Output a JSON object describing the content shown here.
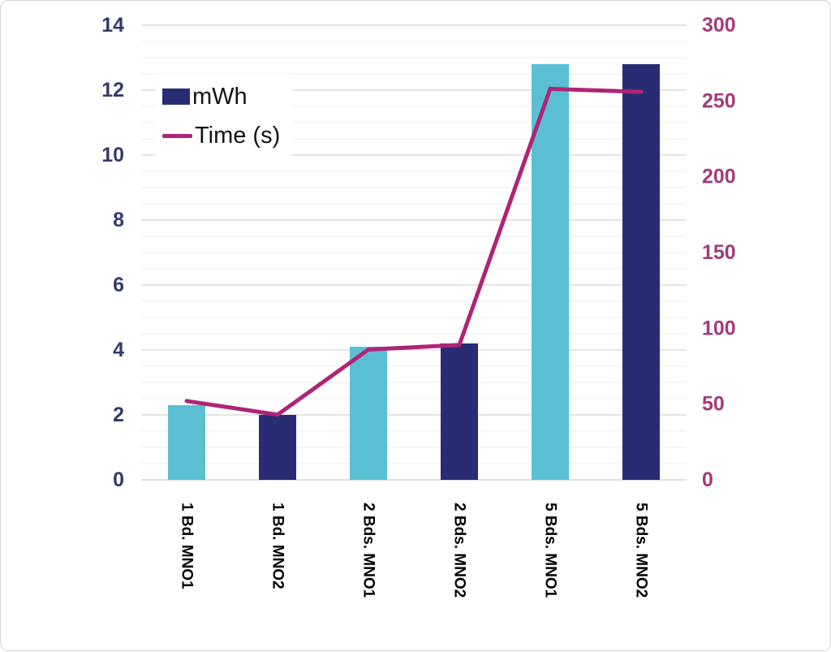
{
  "legend": {
    "items": [
      {
        "label": "mWh",
        "marker": "bar",
        "color": "#272C74"
      },
      {
        "label": "Time (s)",
        "marker": "line",
        "color": "#AF2477"
      }
    ]
  },
  "chart_data": {
    "type": "combo-bar-line",
    "title": "",
    "categories": [
      "1 Bd. MNO1",
      "1 Bd. MNO2",
      "2 Bds. MNO1",
      "2 Bds. MNO2",
      "5 Bds. MNO1",
      "5 Bds. MNO2"
    ],
    "series": [
      {
        "name": "mWh",
        "type": "bar",
        "axis": "left",
        "values": [
          2.3,
          2.0,
          4.1,
          4.2,
          12.8,
          12.8
        ],
        "bar_colors": [
          "#5BBFD4",
          "#272C74",
          "#5BBFD4",
          "#272C74",
          "#5BBFD4",
          "#272C74"
        ]
      },
      {
        "name": "Time (s)",
        "type": "line",
        "axis": "right",
        "values": [
          52,
          43,
          86,
          89,
          258,
          256
        ],
        "color": "#AF2477",
        "stroke_width": 5
      }
    ],
    "left_axis": {
      "min": 0,
      "max": 14,
      "tick_step": 2,
      "tick_labels": [
        "0",
        "2",
        "4",
        "6",
        "8",
        "10",
        "12",
        "14"
      ],
      "color": "#333A6E"
    },
    "right_axis": {
      "min": 0,
      "max": 300,
      "tick_step": 50,
      "tick_labels": [
        "0",
        "50",
        "100",
        "150",
        "200",
        "250",
        "300"
      ],
      "color": "#A23A7D"
    },
    "grid": {
      "minor_step": 0.5,
      "major_step": 2,
      "minor_color": "#ECECEC",
      "major_color": "#C9C9C9",
      "baseline_color": "#BDBDBD"
    },
    "category_label_color": "#000000",
    "legend_position": "top-left-inside"
  }
}
